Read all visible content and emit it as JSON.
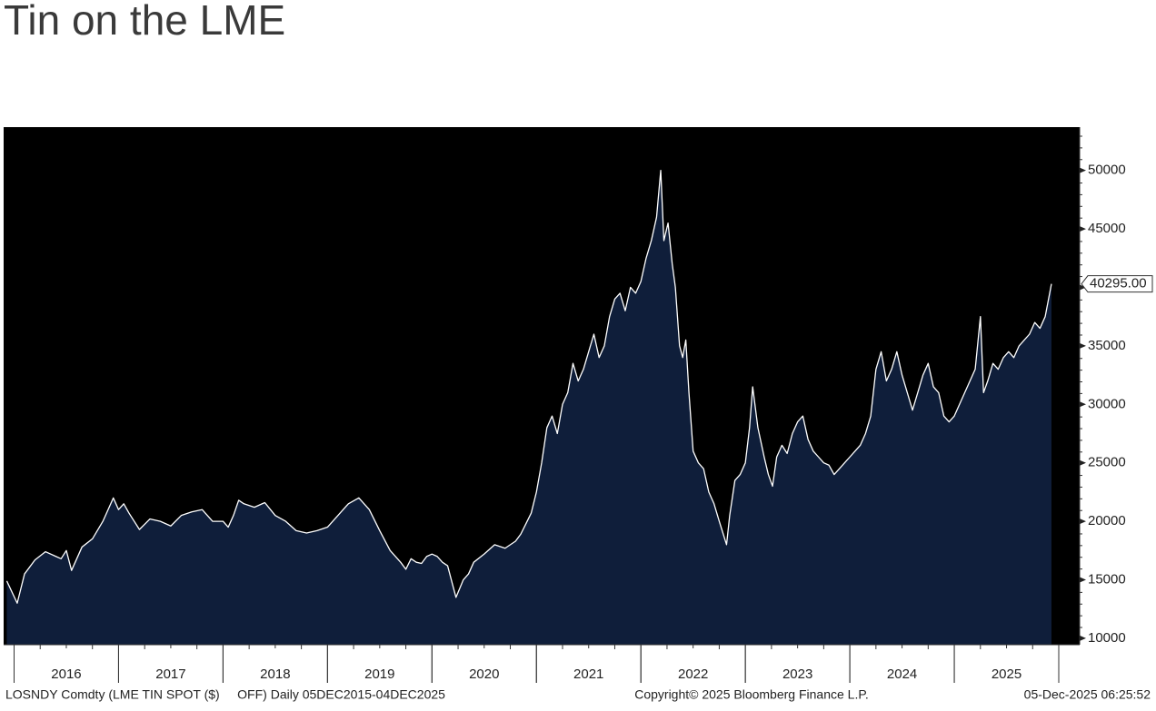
{
  "chart_data": {
    "type": "area",
    "title": "Tin on the LME",
    "source_label": "LOSNDY Comdty (LME TIN SPOT ($)     OFF) Daily 05DEC2015-04DEC2025",
    "copyright": "Copyright© 2025 Bloomberg Finance L.P.",
    "timestamp": "05-Dec-2025 06:25:52",
    "x": [
      2015.93,
      2016.03,
      2016.1,
      2016.2,
      2016.3,
      2016.4,
      2016.45,
      2016.5,
      2016.55,
      2016.65,
      2016.75,
      2016.85,
      2016.9,
      2016.95,
      2017.0,
      2017.05,
      2017.1,
      2017.2,
      2017.3,
      2017.4,
      2017.5,
      2017.6,
      2017.7,
      2017.8,
      2017.9,
      2018.0,
      2018.05,
      2018.1,
      2018.15,
      2018.2,
      2018.3,
      2018.4,
      2018.5,
      2018.6,
      2018.7,
      2018.8,
      2018.9,
      2019.0,
      2019.1,
      2019.2,
      2019.3,
      2019.4,
      2019.5,
      2019.6,
      2019.7,
      2019.75,
      2019.8,
      2019.85,
      2019.9,
      2019.95,
      2020.0,
      2020.05,
      2020.1,
      2020.15,
      2020.2,
      2020.23,
      2020.3,
      2020.35,
      2020.4,
      2020.5,
      2020.6,
      2020.7,
      2020.8,
      2020.85,
      2020.9,
      2020.95,
      2021.0,
      2021.05,
      2021.1,
      2021.15,
      2021.2,
      2021.25,
      2021.3,
      2021.35,
      2021.4,
      2021.45,
      2021.5,
      2021.55,
      2021.6,
      2021.65,
      2021.7,
      2021.75,
      2021.8,
      2021.85,
      2021.9,
      2021.95,
      2022.0,
      2022.05,
      2022.1,
      2022.15,
      2022.19,
      2022.22,
      2022.26,
      2022.3,
      2022.33,
      2022.37,
      2022.4,
      2022.43,
      2022.46,
      2022.5,
      2022.55,
      2022.6,
      2022.65,
      2022.7,
      2022.75,
      2022.82,
      2022.85,
      2022.9,
      2022.95,
      2023.0,
      2023.04,
      2023.07,
      2023.12,
      2023.18,
      2023.22,
      2023.26,
      2023.3,
      2023.35,
      2023.4,
      2023.45,
      2023.5,
      2023.55,
      2023.6,
      2023.65,
      2023.7,
      2023.75,
      2023.8,
      2023.85,
      2023.9,
      2023.95,
      2024.0,
      2024.05,
      2024.1,
      2024.15,
      2024.2,
      2024.25,
      2024.3,
      2024.35,
      2024.4,
      2024.45,
      2024.5,
      2024.55,
      2024.6,
      2024.65,
      2024.7,
      2024.75,
      2024.8,
      2024.85,
      2024.9,
      2024.95,
      2025.0,
      2025.05,
      2025.1,
      2025.15,
      2025.2,
      2025.25,
      2025.28,
      2025.32,
      2025.37,
      2025.42,
      2025.47,
      2025.52,
      2025.57,
      2025.62,
      2025.67,
      2025.72,
      2025.77,
      2025.82,
      2025.87,
      2025.93
    ],
    "series": [
      {
        "color": "#ffffff",
        "area_color": "#0f1e3a",
        "values": [
          14900,
          13000,
          15500,
          16700,
          17400,
          17000,
          16800,
          17500,
          15800,
          17800,
          18500,
          20000,
          21000,
          22000,
          21000,
          21500,
          20700,
          19300,
          20200,
          20000,
          19600,
          20500,
          20800,
          21000,
          20000,
          20000,
          19500,
          20500,
          21800,
          21500,
          21200,
          21600,
          20500,
          20000,
          19200,
          19000,
          19200,
          19500,
          20500,
          21500,
          22000,
          21000,
          19200,
          17500,
          16500,
          15900,
          16800,
          16500,
          16400,
          17000,
          17200,
          17000,
          16500,
          16200,
          14500,
          13500,
          15000,
          15500,
          16500,
          17200,
          18000,
          17700,
          18300,
          18900,
          19800,
          20700,
          22500,
          25000,
          28000,
          29000,
          27500,
          30000,
          31000,
          33500,
          32000,
          33000,
          34500,
          36000,
          34000,
          35000,
          37500,
          39000,
          39500,
          38000,
          40000,
          39500,
          40500,
          42500,
          44000,
          46000,
          50000,
          44000,
          45500,
          42000,
          40000,
          35000,
          34000,
          35500,
          31000,
          26000,
          25000,
          24500,
          22500,
          21500,
          20000,
          18000,
          20500,
          23500,
          24000,
          25000,
          28000,
          31500,
          28000,
          25500,
          24000,
          23000,
          25500,
          26500,
          25800,
          27500,
          28500,
          29000,
          27000,
          26000,
          25500,
          25000,
          24800,
          24000,
          24500,
          25000,
          25500,
          26000,
          26500,
          27500,
          29000,
          33000,
          34500,
          32000,
          33000,
          34500,
          32500,
          31000,
          29500,
          31000,
          32500,
          33500,
          31500,
          31000,
          29000,
          28500,
          29000,
          30000,
          31000,
          32000,
          33000,
          37500,
          31000,
          32000,
          33500,
          33000,
          34000,
          34500,
          34000,
          35000,
          35500,
          36000,
          37000,
          36500,
          37500,
          40295
        ]
      }
    ],
    "last_value": {
      "value": 40295,
      "label": "40295.00"
    },
    "xlim": [
      2015.9,
      2026.2
    ],
    "xticks": [
      {
        "value": 2016.5,
        "label": "2016"
      },
      {
        "value": 2017.5,
        "label": "2017"
      },
      {
        "value": 2018.5,
        "label": "2018"
      },
      {
        "value": 2019.5,
        "label": "2019"
      },
      {
        "value": 2020.5,
        "label": "2020"
      },
      {
        "value": 2021.5,
        "label": "2021"
      },
      {
        "value": 2022.5,
        "label": "2022"
      },
      {
        "value": 2023.5,
        "label": "2023"
      },
      {
        "value": 2024.5,
        "label": "2024"
      },
      {
        "value": 2025.5,
        "label": "2025"
      }
    ],
    "ylim": [
      9450,
      53700
    ],
    "yticks": [
      10000,
      15000,
      20000,
      25000,
      30000,
      35000,
      40000,
      45000,
      50000
    ],
    "background": "#000000"
  }
}
